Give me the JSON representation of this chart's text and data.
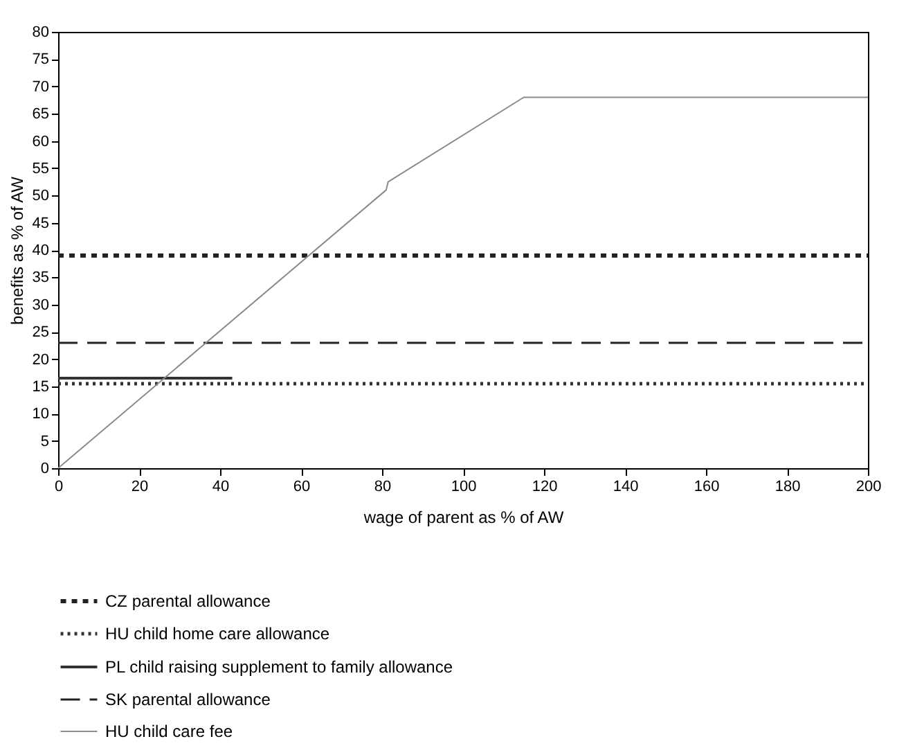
{
  "chart_data": {
    "type": "line",
    "xlabel": "wage of parent as % of AW",
    "ylabel": "benefits as % of AW",
    "xlim": [
      0,
      200
    ],
    "ylim": [
      0,
      80
    ],
    "xticks": [
      0,
      20,
      40,
      60,
      80,
      100,
      120,
      140,
      160,
      180,
      200
    ],
    "yticks": [
      0,
      5,
      10,
      15,
      20,
      25,
      30,
      35,
      40,
      45,
      50,
      55,
      60,
      65,
      70,
      75,
      80
    ],
    "grid": false,
    "legend": "bottom",
    "marker": "none",
    "series": [
      {
        "name": "CZ parental allowance",
        "color": "#222222",
        "line_style": "dotted",
        "x": [
          0,
          200
        ],
        "values": [
          39,
          39
        ]
      },
      {
        "name": "HU child home care allowance",
        "color": "#333333",
        "line_style": "dotted",
        "x": [
          0,
          200
        ],
        "values": [
          15.5,
          15.5
        ]
      },
      {
        "name": "PL child raising supplement to family allowance",
        "color": "#333333",
        "line_style": "solid",
        "x": [
          0,
          43
        ],
        "values": [
          16.5,
          16.5
        ]
      },
      {
        "name": "SK parental allowance",
        "color": "#222222",
        "line_style": "dashed",
        "x": [
          0,
          200
        ],
        "values": [
          23,
          23
        ]
      },
      {
        "name": "HU child care fee",
        "color": "#8a8a8a",
        "line_style": "solid",
        "x": [
          0,
          81,
          81.5,
          115,
          200
        ],
        "values": [
          0,
          51,
          52.5,
          68,
          68
        ]
      }
    ]
  }
}
